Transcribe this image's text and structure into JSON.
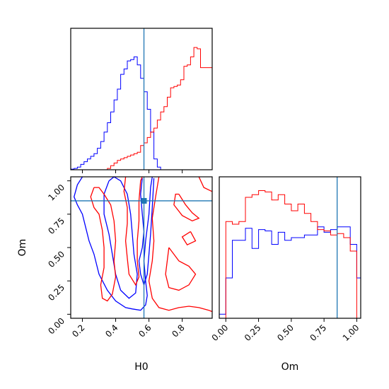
{
  "colors": {
    "red": "#ff0000",
    "blue": "#0000ff",
    "truth": "#1f77b4",
    "frame": "#000000"
  },
  "chart_data": [
    {
      "type": "histogram",
      "panel": "H0-marginal",
      "xlim": [
        0.13,
        0.98
      ],
      "bins": [
        0.13,
        0.15,
        0.17,
        0.19,
        0.21,
        0.23,
        0.25,
        0.27,
        0.29,
        0.31,
        0.33,
        0.35,
        0.37,
        0.39,
        0.41,
        0.43,
        0.45,
        0.47,
        0.49,
        0.51,
        0.53,
        0.55,
        0.57,
        0.59,
        0.61,
        0.63,
        0.65,
        0.67,
        0.69,
        0.71,
        0.73,
        0.75,
        0.77,
        0.79,
        0.81,
        0.83,
        0.85,
        0.87,
        0.89,
        0.91,
        0.93,
        0.95,
        0.98
      ],
      "series": [
        {
          "color": "blue",
          "values": [
            0.005,
            0.01,
            0.02,
            0.04,
            0.06,
            0.08,
            0.1,
            0.12,
            0.16,
            0.21,
            0.28,
            0.35,
            0.43,
            0.52,
            0.6,
            0.71,
            0.75,
            0.81,
            0.82,
            0.84,
            0.78,
            0.68,
            0.58,
            0.45,
            0.28,
            0.08,
            0.02,
            0.0,
            0.0,
            0.0,
            0.0,
            0.0,
            0.0,
            0.0,
            0.0,
            0.0,
            0.0,
            0.0,
            0.0,
            0.0,
            0.0,
            0.0
          ]
        },
        {
          "color": "red",
          "values": [
            0.0,
            0.0,
            0.0,
            0.0,
            0.0,
            0.0,
            0.0,
            0.0,
            0.0,
            0.0,
            0.0,
            0.01,
            0.03,
            0.05,
            0.07,
            0.08,
            0.09,
            0.1,
            0.11,
            0.12,
            0.13,
            0.18,
            0.2,
            0.24,
            0.28,
            0.31,
            0.37,
            0.43,
            0.47,
            0.54,
            0.61,
            0.62,
            0.63,
            0.67,
            0.77,
            0.78,
            0.84,
            0.91,
            0.9,
            0.76,
            0.76,
            0.76
          ]
        }
      ],
      "truth": 0.57
    },
    {
      "type": "contour",
      "panel": "H0-Om-2d",
      "xlabel": "H0",
      "ylabel": "Om",
      "xlim": [
        0.13,
        0.98
      ],
      "ylim": [
        -0.03,
        1.03
      ],
      "xticks": [
        "0.2",
        "0.4",
        "0.6",
        "0.8"
      ],
      "yticks": [
        "0.00",
        "0.25",
        "0.50",
        "0.75",
        "1.00"
      ],
      "xtick_values": [
        0.2,
        0.4,
        0.6,
        0.8
      ],
      "ytick_values": [
        0.0,
        0.25,
        0.5,
        0.75,
        1.0
      ],
      "contours": [
        {
          "color": "blue",
          "points": [
            [
              0.2,
              1.03
            ],
            [
              0.17,
              0.97
            ],
            [
              0.15,
              0.88
            ],
            [
              0.17,
              0.82
            ],
            [
              0.2,
              0.75
            ],
            [
              0.22,
              0.65
            ],
            [
              0.24,
              0.55
            ],
            [
              0.27,
              0.45
            ],
            [
              0.3,
              0.3
            ],
            [
              0.35,
              0.18
            ],
            [
              0.4,
              0.1
            ],
            [
              0.46,
              0.05
            ],
            [
              0.5,
              0.04
            ],
            [
              0.55,
              0.03
            ],
            [
              0.58,
              0.07
            ],
            [
              0.59,
              0.14
            ],
            [
              0.58,
              0.25
            ],
            [
              0.57,
              0.4
            ],
            [
              0.58,
              0.55
            ],
            [
              0.6,
              0.75
            ],
            [
              0.61,
              0.95
            ],
            [
              0.62,
              1.03
            ]
          ]
        },
        {
          "color": "blue",
          "points": [
            [
              0.36,
              1.0
            ],
            [
              0.33,
              0.9
            ],
            [
              0.33,
              0.75
            ],
            [
              0.36,
              0.6
            ],
            [
              0.38,
              0.45
            ],
            [
              0.4,
              0.3
            ],
            [
              0.43,
              0.18
            ],
            [
              0.48,
              0.12
            ],
            [
              0.52,
              0.16
            ],
            [
              0.53,
              0.3
            ],
            [
              0.51,
              0.45
            ],
            [
              0.5,
              0.6
            ],
            [
              0.49,
              0.75
            ],
            [
              0.47,
              0.9
            ],
            [
              0.43,
              1.0
            ],
            [
              0.39,
              1.03
            ],
            [
              0.36,
              1.0
            ]
          ]
        },
        {
          "color": "blue",
          "points": [
            [
              0.56,
              1.02
            ],
            [
              0.55,
              0.9
            ],
            [
              0.56,
              0.75
            ],
            [
              0.57,
              0.62
            ],
            [
              0.56,
              0.5
            ],
            [
              0.54,
              0.4
            ],
            [
              0.55,
              0.3
            ],
            [
              0.57,
              0.22
            ],
            [
              0.59,
              0.3
            ],
            [
              0.6,
              0.45
            ],
            [
              0.61,
              0.6
            ],
            [
              0.62,
              0.8
            ],
            [
              0.63,
              1.02
            ]
          ]
        },
        {
          "color": "red",
          "points": [
            [
              0.27,
              0.95
            ],
            [
              0.25,
              0.88
            ],
            [
              0.27,
              0.8
            ],
            [
              0.3,
              0.75
            ],
            [
              0.32,
              0.63
            ],
            [
              0.33,
              0.5
            ],
            [
              0.33,
              0.35
            ],
            [
              0.31,
              0.22
            ],
            [
              0.32,
              0.12
            ],
            [
              0.35,
              0.1
            ],
            [
              0.38,
              0.15
            ],
            [
              0.4,
              0.28
            ],
            [
              0.39,
              0.4
            ],
            [
              0.4,
              0.55
            ],
            [
              0.39,
              0.7
            ],
            [
              0.37,
              0.82
            ],
            [
              0.33,
              0.9
            ],
            [
              0.3,
              0.95
            ],
            [
              0.27,
              0.95
            ]
          ]
        },
        {
          "color": "red",
          "points": [
            [
              0.46,
              1.03
            ],
            [
              0.45,
              0.92
            ],
            [
              0.47,
              0.8
            ],
            [
              0.47,
              0.68
            ],
            [
              0.46,
              0.55
            ],
            [
              0.47,
              0.42
            ],
            [
              0.48,
              0.3
            ],
            [
              0.52,
              0.22
            ],
            [
              0.54,
              0.28
            ],
            [
              0.53,
              0.4
            ],
            [
              0.53,
              0.55
            ],
            [
              0.54,
              0.7
            ],
            [
              0.54,
              0.85
            ],
            [
              0.55,
              1.0
            ],
            [
              0.56,
              1.03
            ]
          ]
        },
        {
          "color": "red",
          "points": [
            [
              0.66,
              1.03
            ],
            [
              0.64,
              0.88
            ],
            [
              0.62,
              0.72
            ],
            [
              0.63,
              0.55
            ],
            [
              0.62,
              0.4
            ],
            [
              0.6,
              0.25
            ],
            [
              0.62,
              0.12
            ],
            [
              0.66,
              0.05
            ],
            [
              0.72,
              0.03
            ],
            [
              0.78,
              0.05
            ],
            [
              0.84,
              0.06
            ],
            [
              0.9,
              0.05
            ],
            [
              0.96,
              0.03
            ],
            [
              0.98,
              0.02
            ]
          ]
        },
        {
          "color": "red",
          "points": [
            [
              0.85,
              0.62
            ],
            [
              0.8,
              0.58
            ],
            [
              0.83,
              0.52
            ],
            [
              0.88,
              0.55
            ],
            [
              0.85,
              0.62
            ]
          ]
        },
        {
          "color": "red",
          "points": [
            [
              0.78,
              0.9
            ],
            [
              0.82,
              0.82
            ],
            [
              0.86,
              0.76
            ],
            [
              0.9,
              0.72
            ],
            [
              0.86,
              0.7
            ],
            [
              0.8,
              0.74
            ],
            [
              0.75,
              0.82
            ],
            [
              0.76,
              0.9
            ],
            [
              0.78,
              0.9
            ]
          ]
        },
        {
          "color": "red",
          "points": [
            [
              0.9,
              1.03
            ],
            [
              0.93,
              0.95
            ],
            [
              0.98,
              0.92
            ]
          ]
        },
        {
          "color": "red",
          "points": [
            [
              0.72,
              0.5
            ],
            [
              0.78,
              0.4
            ],
            [
              0.84,
              0.36
            ],
            [
              0.88,
              0.3
            ],
            [
              0.84,
              0.22
            ],
            [
              0.78,
              0.18
            ],
            [
              0.72,
              0.2
            ],
            [
              0.7,
              0.3
            ],
            [
              0.72,
              0.5
            ]
          ]
        }
      ],
      "truth": {
        "x": 0.57,
        "y": 0.85
      }
    },
    {
      "type": "histogram",
      "panel": "Om-marginal",
      "xlabel": "Om",
      "xlim": [
        -0.05,
        1.03
      ],
      "xticks": [
        "0.00",
        "0.25",
        "0.50",
        "0.75",
        "1.00"
      ],
      "xtick_values": [
        0.0,
        0.25,
        0.5,
        0.75,
        1.0
      ],
      "bins": [
        -0.05,
        0.0,
        0.05,
        0.1,
        0.15,
        0.2,
        0.25,
        0.3,
        0.35,
        0.4,
        0.45,
        0.5,
        0.55,
        0.6,
        0.65,
        0.7,
        0.75,
        0.8,
        0.85,
        0.9,
        0.95,
        1.0,
        1.03
      ],
      "series": [
        {
          "color": "blue",
          "values": [
            0.03,
            0.3,
            0.58,
            0.58,
            0.67,
            0.52,
            0.66,
            0.65,
            0.55,
            0.64,
            0.58,
            0.6,
            0.6,
            0.62,
            0.62,
            0.68,
            0.64,
            0.66,
            0.68,
            0.68,
            0.55,
            0.3
          ]
        },
        {
          "color": "red",
          "values": [
            0.0,
            0.72,
            0.7,
            0.72,
            0.9,
            0.92,
            0.95,
            0.94,
            0.88,
            0.92,
            0.85,
            0.8,
            0.85,
            0.78,
            0.72,
            0.66,
            0.65,
            0.62,
            0.63,
            0.6,
            0.5,
            0.0
          ]
        }
      ],
      "truth": 0.85
    }
  ]
}
